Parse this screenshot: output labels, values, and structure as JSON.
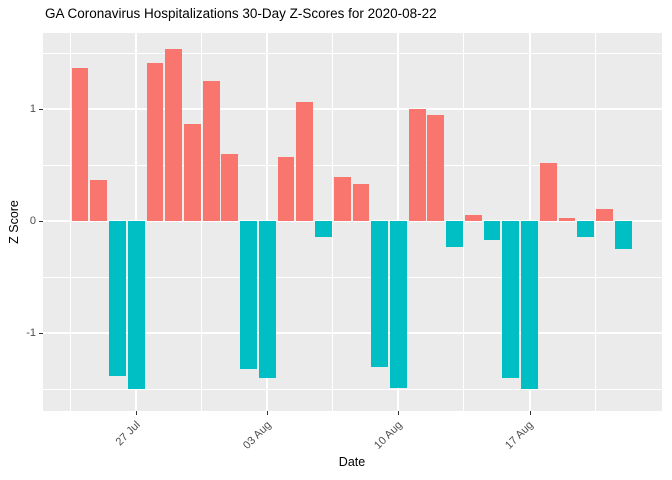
{
  "title": "GA Coronavirus Hospitalizations 30-Day Z-Scores for 2020-08-22",
  "chart_data": {
    "type": "bar",
    "title": "GA Coronavirus Hospitalizations 30-Day Z-Scores for 2020-08-22",
    "xlabel": "Date",
    "ylabel": "Z Score",
    "x": [
      "2020-07-24",
      "2020-07-25",
      "2020-07-26",
      "2020-07-27",
      "2020-07-28",
      "2020-07-29",
      "2020-07-30",
      "2020-07-31",
      "2020-08-01",
      "2020-08-02",
      "2020-08-03",
      "2020-08-04",
      "2020-08-05",
      "2020-08-06",
      "2020-08-07",
      "2020-08-08",
      "2020-08-09",
      "2020-08-10",
      "2020-08-11",
      "2020-08-12",
      "2020-08-13",
      "2020-08-14",
      "2020-08-15",
      "2020-08-16",
      "2020-08-17",
      "2020-08-18",
      "2020-08-19",
      "2020-08-20",
      "2020-08-21",
      "2020-08-22"
    ],
    "values": [
      1.37,
      0.37,
      -1.38,
      -1.5,
      1.41,
      1.54,
      0.87,
      1.25,
      0.6,
      -1.32,
      -1.4,
      0.57,
      1.06,
      -0.14,
      0.39,
      0.33,
      -1.3,
      -1.49,
      1.0,
      0.95,
      -0.23,
      0.05,
      -0.17,
      -1.4,
      -1.5,
      0.52,
      0.03,
      -0.14,
      0.11,
      -0.25
    ],
    "ylim": [
      -1.696,
      1.679
    ],
    "grid": true,
    "legend": false,
    "x_axis": {
      "tick_labels": [
        "27 Jul",
        "03 Aug",
        "10 Aug",
        "17 Aug"
      ],
      "tick_indices": [
        3,
        10,
        17,
        24
      ],
      "minor_grid_offset": 3.5
    },
    "y_axis": {
      "ticks": [
        -1,
        0,
        1
      ],
      "tick_labels": [
        "-1",
        "0",
        "1"
      ]
    },
    "colors": {
      "positive": "#F8766D",
      "negative": "#00BFC4",
      "panel_background": "#EBEBEB",
      "gridline": "#FFFFFF",
      "axis_text": "#4D4D4D",
      "tick_mark": "#333333",
      "title_text": "#000000"
    }
  }
}
